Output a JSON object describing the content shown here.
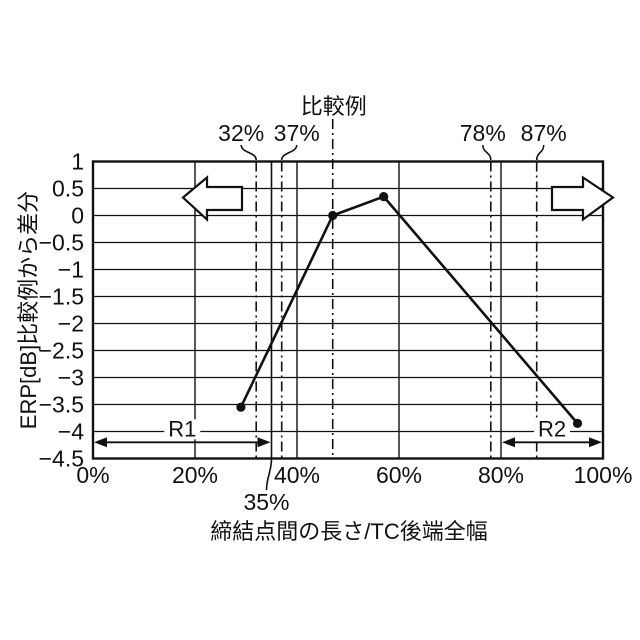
{
  "chart_data": {
    "type": "line",
    "title_top": "比較例",
    "xlabel": "締結点間の長さ/TC後端全幅",
    "ylabel": "ERP[dB]比較例から差分",
    "xlim": [
      0,
      100
    ],
    "ylim": [
      -4.5,
      1
    ],
    "grid": true,
    "x_ticks": [
      0,
      20,
      40,
      60,
      80,
      100
    ],
    "x_ticklabels": [
      "0%",
      "20%",
      "40%",
      "60%",
      "80%",
      "100%"
    ],
    "y_ticks": [
      1,
      0.5,
      0,
      -0.5,
      -1,
      -1.5,
      -2,
      -2.5,
      -3,
      -3.5,
      -4,
      -4.5
    ],
    "y_ticklabels": [
      "1",
      "0.5",
      "0",
      "−0.5",
      "−1",
      "−1.5",
      "−2",
      "−2.5",
      "−3",
      "−3.5",
      "−4",
      "−4.5"
    ],
    "series": [
      {
        "name": "ERP difference from comparative example",
        "x": [
          29,
          47,
          57,
          95
        ],
        "y": [
          -3.55,
          0,
          0.35,
          -3.85
        ],
        "marker": "filled-circle",
        "color": "#111111"
      }
    ],
    "vlines": [
      {
        "x": 32,
        "label": "32%",
        "style": "dashdot",
        "label_side": "top",
        "label_dx": -15
      },
      {
        "x": 35,
        "label": "35%",
        "style": "solid",
        "label_side": "bottom",
        "label_dx": -5
      },
      {
        "x": 37,
        "label": "37%",
        "style": "dashdot",
        "label_side": "top",
        "label_dx": 15
      },
      {
        "x": 47,
        "label": "比較例",
        "style": "dashdot",
        "label_side": "title",
        "label_dx": 1
      },
      {
        "x": 78,
        "label": "78%",
        "style": "dashdot",
        "label_side": "top",
        "label_dx": -8
      },
      {
        "x": 87,
        "label": "87%",
        "style": "dashdot",
        "label_side": "top",
        "label_dx": 7
      }
    ],
    "ranges": [
      {
        "label": "R1",
        "from": 0,
        "to": 35,
        "y": -4.2
      },
      {
        "label": "R2",
        "from": 80,
        "to": 100,
        "y": -4.2
      }
    ],
    "big_arrows": [
      {
        "name": "left-direction-arrow",
        "direction": "left"
      },
      {
        "name": "right-direction-arrow",
        "direction": "right"
      }
    ],
    "colors": {
      "ink": "#111111",
      "background": "#ffffff"
    },
    "legend": null
  }
}
